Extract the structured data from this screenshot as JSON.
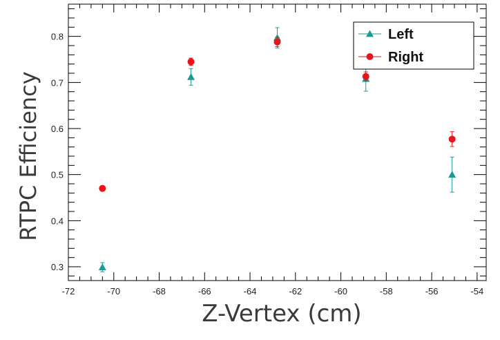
{
  "chart_data": {
    "type": "scatter",
    "xlabel": "Z-Vertex (cm)",
    "ylabel": "RTPC Efficiency",
    "xlim": [
      -72,
      -53.6
    ],
    "ylim": [
      0.27,
      0.87
    ],
    "xticks": [
      -72,
      -70,
      -68,
      -66,
      -64,
      -62,
      -60,
      -58,
      -56,
      -54
    ],
    "yticks": [
      0.3,
      0.4,
      0.5,
      0.6,
      0.7,
      0.8
    ],
    "grid": false,
    "legend_position": "top-right",
    "series": [
      {
        "name": "Left",
        "marker": "triangle",
        "color": "#1a9a96",
        "points": [
          {
            "x": -70.5,
            "y": 0.299,
            "err": 0.01
          },
          {
            "x": -66.6,
            "y": 0.712,
            "err": 0.018
          },
          {
            "x": -62.8,
            "y": 0.797,
            "err": 0.022
          },
          {
            "x": -58.9,
            "y": 0.708,
            "err": 0.027
          },
          {
            "x": -55.1,
            "y": 0.5,
            "err": 0.038
          }
        ]
      },
      {
        "name": "Right",
        "marker": "circle",
        "color": "#e8141a",
        "points": [
          {
            "x": -70.5,
            "y": 0.47,
            "err": 0.0
          },
          {
            "x": -66.6,
            "y": 0.745,
            "err": 0.008
          },
          {
            "x": -62.8,
            "y": 0.788,
            "err": 0.01
          },
          {
            "x": -58.9,
            "y": 0.713,
            "err": 0.01
          },
          {
            "x": -55.1,
            "y": 0.577,
            "err": 0.016
          }
        ]
      }
    ]
  }
}
